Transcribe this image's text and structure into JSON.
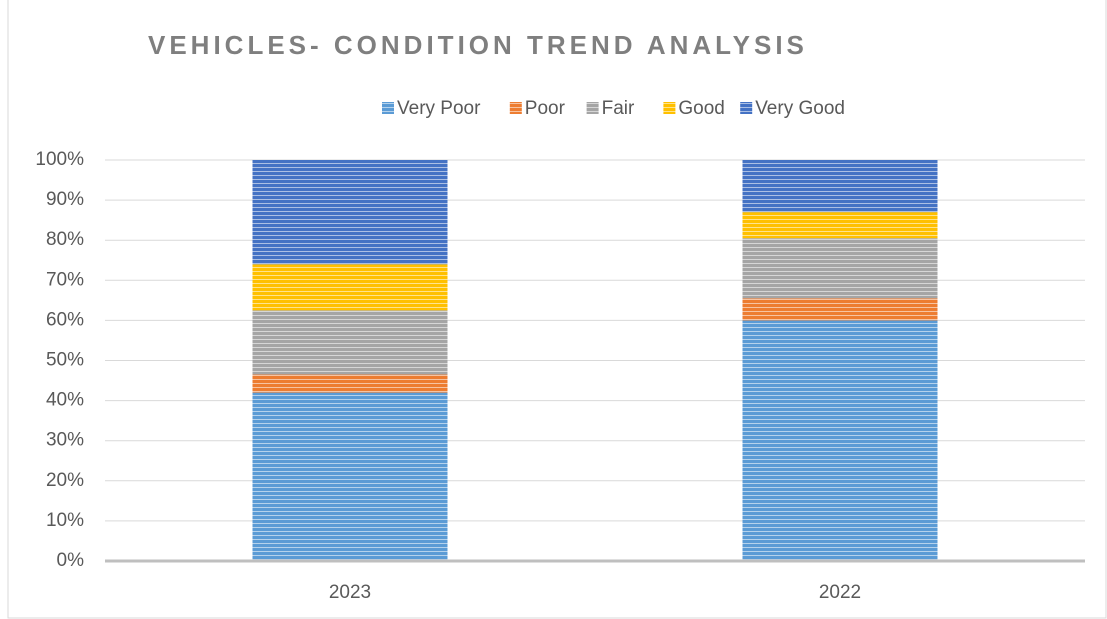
{
  "chart_data": {
    "type": "stacked_bar_100",
    "title": "VEHICLES- CONDITION TREND ANALYSIS",
    "categories": [
      "2023",
      "2022"
    ],
    "series": [
      {
        "name": "Very Poor",
        "color": "#5b9bd5",
        "values": [
          42,
          60
        ]
      },
      {
        "name": "Poor",
        "color": "#ed7d31",
        "values": [
          4.5,
          5.5
        ]
      },
      {
        "name": "Fair",
        "color": "#a5a5a5",
        "values": [
          16,
          15
        ]
      },
      {
        "name": "Good",
        "color": "#ffc000",
        "values": [
          11.5,
          6.5
        ]
      },
      {
        "name": "Very Good",
        "color": "#4472c4",
        "values": [
          26,
          13
        ]
      }
    ],
    "ylim": [
      0,
      100
    ],
    "yticks": [
      {
        "value": 0,
        "label": "0%"
      },
      {
        "value": 10,
        "label": "10%"
      },
      {
        "value": 20,
        "label": "20%"
      },
      {
        "value": 30,
        "label": "30%"
      },
      {
        "value": 40,
        "label": "40%"
      },
      {
        "value": 50,
        "label": "50%"
      },
      {
        "value": 60,
        "label": "60%"
      },
      {
        "value": 70,
        "label": "70%"
      },
      {
        "value": 80,
        "label": "80%"
      },
      {
        "value": 90,
        "label": "90%"
      },
      {
        "value": 100,
        "label": "100%"
      }
    ],
    "grid": true,
    "legend": "top"
  }
}
